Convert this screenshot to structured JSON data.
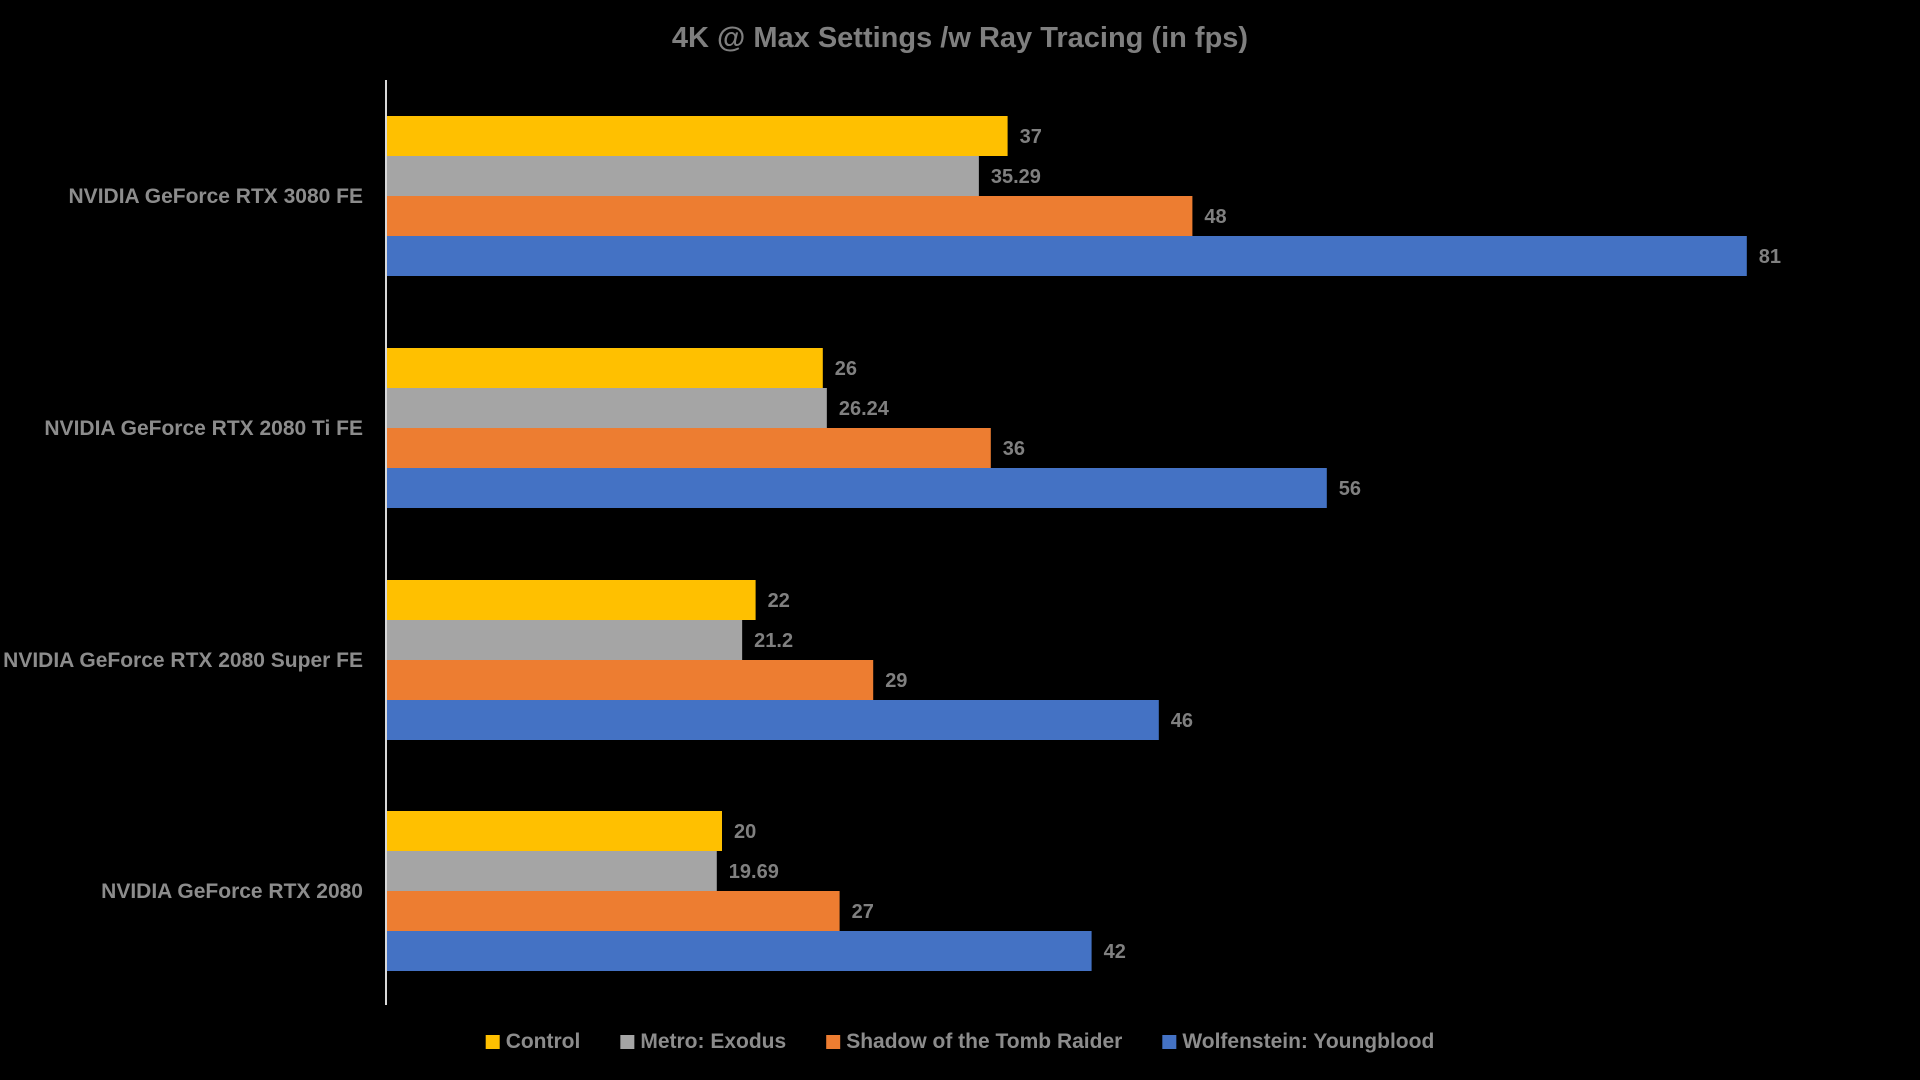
{
  "chart_data": {
    "type": "bar",
    "orientation": "horizontal",
    "title": "4K @ Max Settings /w Ray Tracing (in fps)",
    "categories": [
      "NVIDIA GeForce RTX 3080 FE",
      "NVIDIA GeForce RTX 2080 Ti FE",
      "NVIDIA GeForce RTX 2080 Super FE",
      "NVIDIA GeForce RTX 2080"
    ],
    "series": [
      {
        "name": "Control",
        "color": "#ffc000",
        "values": [
          37,
          26,
          22,
          20
        ],
        "labels": [
          "37",
          "26",
          "22",
          "20"
        ]
      },
      {
        "name": "Metro: Exodus",
        "color": "#a5a5a5",
        "values": [
          35.29,
          26.24,
          21.2,
          19.69
        ],
        "labels": [
          "35.29",
          "26.24",
          "21.2",
          "19.69"
        ]
      },
      {
        "name": "Shadow of the Tomb Raider",
        "color": "#ed7d31",
        "values": [
          48,
          36,
          29,
          27
        ],
        "labels": [
          "48",
          "36",
          "29",
          "27"
        ]
      },
      {
        "name": "Wolfenstein: Youngblood",
        "color": "#4472c4",
        "values": [
          81,
          56,
          46,
          42
        ],
        "labels": [
          "81",
          "56",
          "46",
          "42"
        ]
      }
    ],
    "xlim": [
      0,
      90
    ],
    "grid": false,
    "axis_labels_visible": false,
    "legend_position": "bottom"
  }
}
